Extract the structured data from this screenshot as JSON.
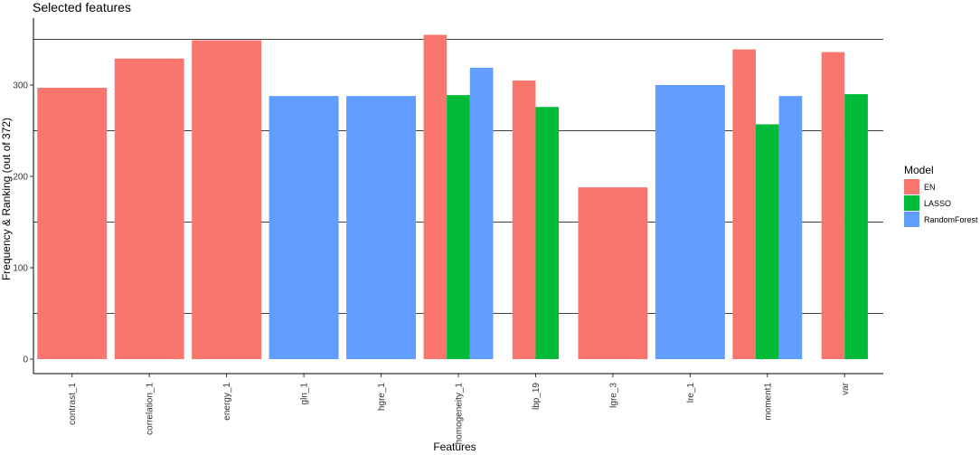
{
  "chart_data": {
    "type": "bar",
    "title": "Selected features",
    "xlabel": "Features",
    "ylabel": "Frequency & Ranking (out of 372)",
    "ylim": [
      0,
      370
    ],
    "yticks": [
      0,
      100,
      200,
      300
    ],
    "hlines": [
      50,
      150,
      250,
      350
    ],
    "categories": [
      "contrast_1",
      "correlation_1",
      "energy_1",
      "gln_1",
      "hgre_1",
      "homogeneity_1",
      "lbp_19",
      "lgre_3",
      "lre_1",
      "moment1",
      "var"
    ],
    "series": [
      {
        "name": "EN",
        "color": "#F8766D",
        "values": [
          297,
          329,
          349,
          null,
          null,
          355,
          305,
          188,
          null,
          339,
          336
        ]
      },
      {
        "name": "LASSO",
        "color": "#00BA38",
        "values": [
          null,
          null,
          null,
          null,
          null,
          289,
          276,
          null,
          null,
          257,
          290
        ]
      },
      {
        "name": "RandomForest",
        "color": "#619CFF",
        "values": [
          null,
          null,
          null,
          288,
          288,
          319,
          null,
          null,
          300,
          288,
          null
        ]
      }
    ],
    "legend": {
      "title": "Model",
      "position": "right"
    },
    "grid": false
  }
}
